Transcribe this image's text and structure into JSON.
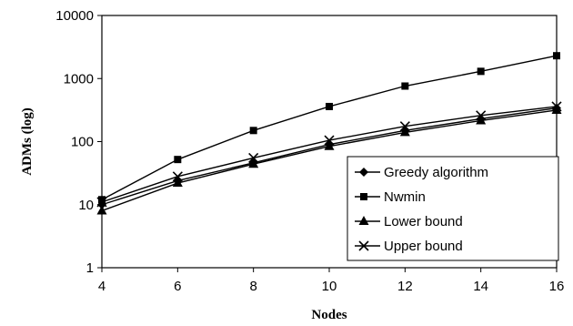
{
  "chart_data": {
    "type": "line",
    "xlabel": "Nodes",
    "ylabel": "ADMs (log)",
    "x": [
      4,
      6,
      8,
      10,
      12,
      14,
      16
    ],
    "xlim": [
      4,
      16
    ],
    "ylim": [
      1,
      10000
    ],
    "yscale": "log",
    "xticks": [
      "4",
      "6",
      "8",
      "10",
      "12",
      "14",
      "16"
    ],
    "yticks": [
      "1",
      "10",
      "100",
      "1000",
      "10000"
    ],
    "grid": false,
    "legend_position": "bottom-right",
    "series": [
      {
        "name": "Greedy algorithm",
        "marker": "diamond",
        "values": [
          10,
          24,
          46,
          90,
          150,
          230,
          340
        ]
      },
      {
        "name": "Nwmin",
        "marker": "square",
        "values": [
          12,
          52,
          150,
          360,
          760,
          1300,
          2300
        ]
      },
      {
        "name": "Lower bound",
        "marker": "triangle",
        "values": [
          8,
          22,
          44,
          84,
          140,
          215,
          315
        ]
      },
      {
        "name": "Upper bound",
        "marker": "x",
        "values": [
          11,
          28,
          55,
          105,
          175,
          260,
          360
        ]
      }
    ]
  }
}
